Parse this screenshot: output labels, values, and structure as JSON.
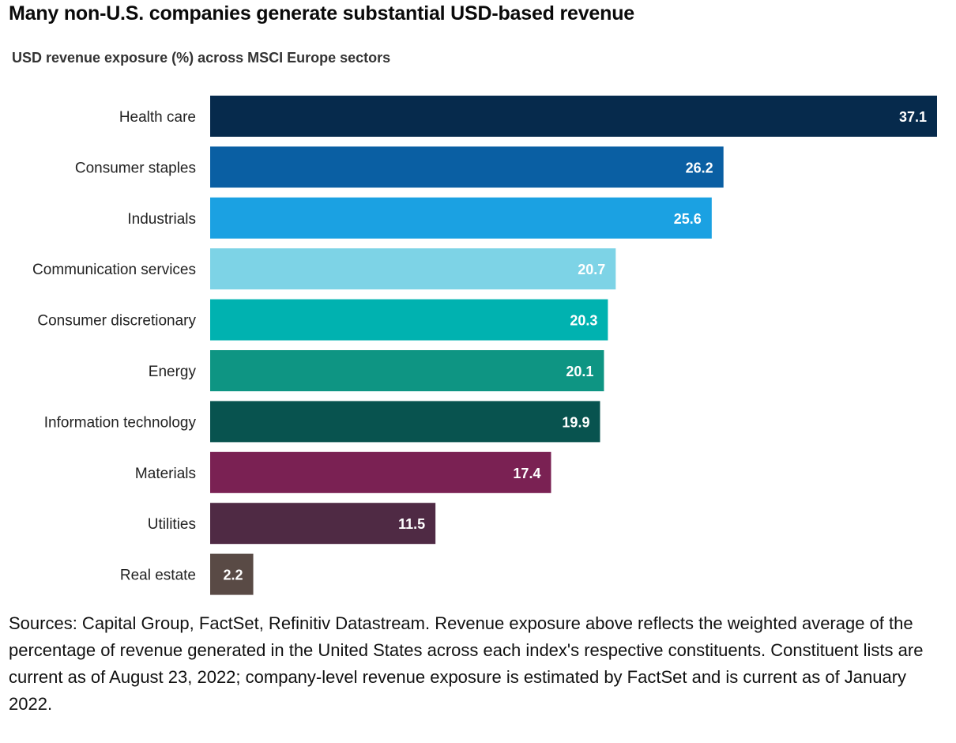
{
  "title": "Many non-U.S. companies generate substantial USD-based revenue",
  "subtitle": "USD revenue exposure (%) across MSCI Europe sectors",
  "sources": "Sources: Capital Group, FactSet, Refinitiv Datastream. Revenue exposure above reflects the weighted average of the percentage of revenue generated in the United States across each index's respective constituents. Constituent lists are current as of August 23, 2022; company-level revenue exposure is estimated by FactSet and is current as of January 2022.",
  "chart_data": {
    "type": "bar",
    "orientation": "horizontal",
    "title": "USD revenue exposure (%) across MSCI Europe sectors",
    "xlabel": "",
    "ylabel": "",
    "xlim": [
      0,
      37.1
    ],
    "grid": false,
    "legend": "none",
    "categories": [
      "Health care",
      "Consumer staples",
      "Industrials",
      "Communication services",
      "Consumer discretionary",
      "Energy",
      "Information technology",
      "Materials",
      "Utilities",
      "Real estate"
    ],
    "values": [
      37.1,
      26.2,
      25.6,
      20.7,
      20.3,
      20.1,
      19.9,
      17.4,
      11.5,
      2.2
    ],
    "value_labels": [
      "37.1",
      "26.2",
      "25.6",
      "20.7",
      "20.3",
      "20.1",
      "19.9",
      "17.4",
      "11.5",
      "2.2"
    ],
    "colors": [
      "#062a4c",
      "#0a5fa3",
      "#1ba1e2",
      "#7dd3e6",
      "#00b2b0",
      "#0e9583",
      "#08534f",
      "#7a2153",
      "#4f2a44",
      "#594a45"
    ]
  }
}
